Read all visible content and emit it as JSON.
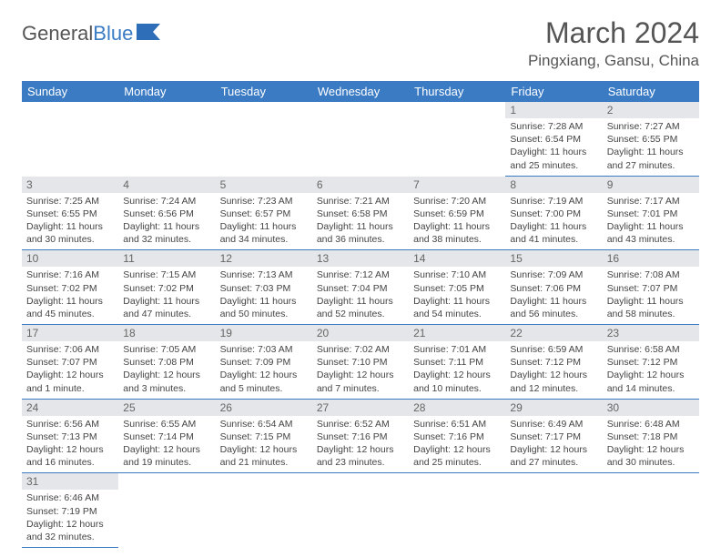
{
  "logo": {
    "part1": "General",
    "part2": "Blue"
  },
  "title": "March 2024",
  "location": "Pingxiang, Gansu, China",
  "weekdays": [
    "Sunday",
    "Monday",
    "Tuesday",
    "Wednesday",
    "Thursday",
    "Friday",
    "Saturday"
  ],
  "colors": {
    "header_bg": "#3a7bc4",
    "header_text": "#ffffff",
    "daynum_bg": "#e4e6e9",
    "border": "#3a7bc4",
    "text": "#444444"
  },
  "weeks": [
    [
      null,
      null,
      null,
      null,
      null,
      {
        "n": "1",
        "sr": "Sunrise: 7:28 AM",
        "ss": "Sunset: 6:54 PM",
        "dl": "Daylight: 11 hours and 25 minutes."
      },
      {
        "n": "2",
        "sr": "Sunrise: 7:27 AM",
        "ss": "Sunset: 6:55 PM",
        "dl": "Daylight: 11 hours and 27 minutes."
      }
    ],
    [
      {
        "n": "3",
        "sr": "Sunrise: 7:25 AM",
        "ss": "Sunset: 6:55 PM",
        "dl": "Daylight: 11 hours and 30 minutes."
      },
      {
        "n": "4",
        "sr": "Sunrise: 7:24 AM",
        "ss": "Sunset: 6:56 PM",
        "dl": "Daylight: 11 hours and 32 minutes."
      },
      {
        "n": "5",
        "sr": "Sunrise: 7:23 AM",
        "ss": "Sunset: 6:57 PM",
        "dl": "Daylight: 11 hours and 34 minutes."
      },
      {
        "n": "6",
        "sr": "Sunrise: 7:21 AM",
        "ss": "Sunset: 6:58 PM",
        "dl": "Daylight: 11 hours and 36 minutes."
      },
      {
        "n": "7",
        "sr": "Sunrise: 7:20 AM",
        "ss": "Sunset: 6:59 PM",
        "dl": "Daylight: 11 hours and 38 minutes."
      },
      {
        "n": "8",
        "sr": "Sunrise: 7:19 AM",
        "ss": "Sunset: 7:00 PM",
        "dl": "Daylight: 11 hours and 41 minutes."
      },
      {
        "n": "9",
        "sr": "Sunrise: 7:17 AM",
        "ss": "Sunset: 7:01 PM",
        "dl": "Daylight: 11 hours and 43 minutes."
      }
    ],
    [
      {
        "n": "10",
        "sr": "Sunrise: 7:16 AM",
        "ss": "Sunset: 7:02 PM",
        "dl": "Daylight: 11 hours and 45 minutes."
      },
      {
        "n": "11",
        "sr": "Sunrise: 7:15 AM",
        "ss": "Sunset: 7:02 PM",
        "dl": "Daylight: 11 hours and 47 minutes."
      },
      {
        "n": "12",
        "sr": "Sunrise: 7:13 AM",
        "ss": "Sunset: 7:03 PM",
        "dl": "Daylight: 11 hours and 50 minutes."
      },
      {
        "n": "13",
        "sr": "Sunrise: 7:12 AM",
        "ss": "Sunset: 7:04 PM",
        "dl": "Daylight: 11 hours and 52 minutes."
      },
      {
        "n": "14",
        "sr": "Sunrise: 7:10 AM",
        "ss": "Sunset: 7:05 PM",
        "dl": "Daylight: 11 hours and 54 minutes."
      },
      {
        "n": "15",
        "sr": "Sunrise: 7:09 AM",
        "ss": "Sunset: 7:06 PM",
        "dl": "Daylight: 11 hours and 56 minutes."
      },
      {
        "n": "16",
        "sr": "Sunrise: 7:08 AM",
        "ss": "Sunset: 7:07 PM",
        "dl": "Daylight: 11 hours and 58 minutes."
      }
    ],
    [
      {
        "n": "17",
        "sr": "Sunrise: 7:06 AM",
        "ss": "Sunset: 7:07 PM",
        "dl": "Daylight: 12 hours and 1 minute."
      },
      {
        "n": "18",
        "sr": "Sunrise: 7:05 AM",
        "ss": "Sunset: 7:08 PM",
        "dl": "Daylight: 12 hours and 3 minutes."
      },
      {
        "n": "19",
        "sr": "Sunrise: 7:03 AM",
        "ss": "Sunset: 7:09 PM",
        "dl": "Daylight: 12 hours and 5 minutes."
      },
      {
        "n": "20",
        "sr": "Sunrise: 7:02 AM",
        "ss": "Sunset: 7:10 PM",
        "dl": "Daylight: 12 hours and 7 minutes."
      },
      {
        "n": "21",
        "sr": "Sunrise: 7:01 AM",
        "ss": "Sunset: 7:11 PM",
        "dl": "Daylight: 12 hours and 10 minutes."
      },
      {
        "n": "22",
        "sr": "Sunrise: 6:59 AM",
        "ss": "Sunset: 7:12 PM",
        "dl": "Daylight: 12 hours and 12 minutes."
      },
      {
        "n": "23",
        "sr": "Sunrise: 6:58 AM",
        "ss": "Sunset: 7:12 PM",
        "dl": "Daylight: 12 hours and 14 minutes."
      }
    ],
    [
      {
        "n": "24",
        "sr": "Sunrise: 6:56 AM",
        "ss": "Sunset: 7:13 PM",
        "dl": "Daylight: 12 hours and 16 minutes."
      },
      {
        "n": "25",
        "sr": "Sunrise: 6:55 AM",
        "ss": "Sunset: 7:14 PM",
        "dl": "Daylight: 12 hours and 19 minutes."
      },
      {
        "n": "26",
        "sr": "Sunrise: 6:54 AM",
        "ss": "Sunset: 7:15 PM",
        "dl": "Daylight: 12 hours and 21 minutes."
      },
      {
        "n": "27",
        "sr": "Sunrise: 6:52 AM",
        "ss": "Sunset: 7:16 PM",
        "dl": "Daylight: 12 hours and 23 minutes."
      },
      {
        "n": "28",
        "sr": "Sunrise: 6:51 AM",
        "ss": "Sunset: 7:16 PM",
        "dl": "Daylight: 12 hours and 25 minutes."
      },
      {
        "n": "29",
        "sr": "Sunrise: 6:49 AM",
        "ss": "Sunset: 7:17 PM",
        "dl": "Daylight: 12 hours and 27 minutes."
      },
      {
        "n": "30",
        "sr": "Sunrise: 6:48 AM",
        "ss": "Sunset: 7:18 PM",
        "dl": "Daylight: 12 hours and 30 minutes."
      }
    ],
    [
      {
        "n": "31",
        "sr": "Sunrise: 6:46 AM",
        "ss": "Sunset: 7:19 PM",
        "dl": "Daylight: 12 hours and 32 minutes."
      },
      null,
      null,
      null,
      null,
      null,
      null
    ]
  ]
}
